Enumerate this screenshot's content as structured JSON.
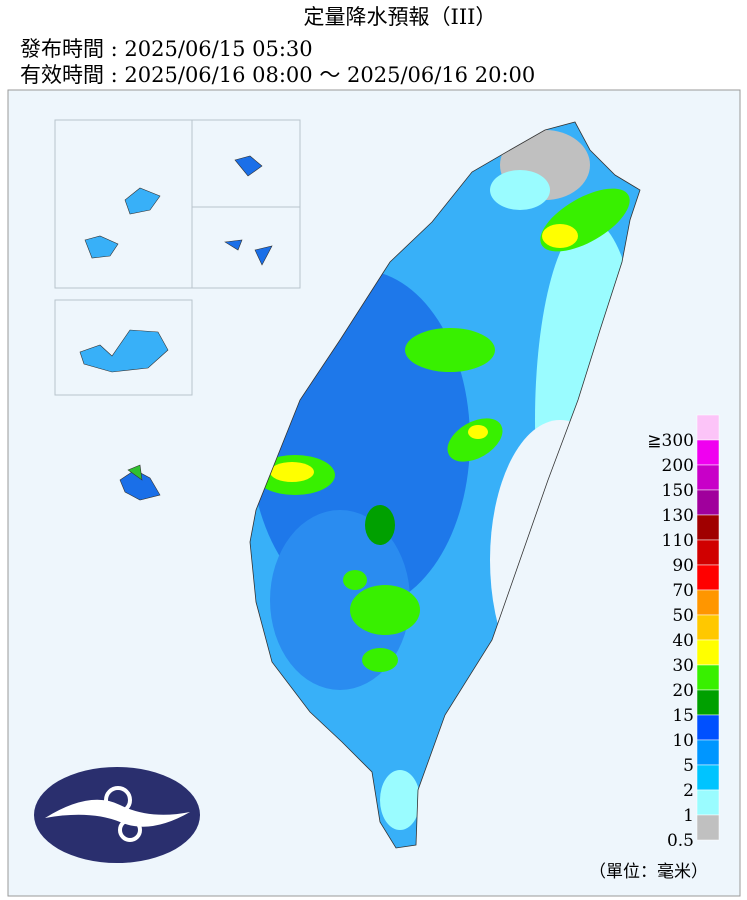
{
  "header": {
    "title": "定量降水預報（III）",
    "issued": "發布時間 : 2025/06/15 05:30",
    "valid": "有效時間 : 2025/06/16 08:00 ～ 2025/06/16 20:00"
  },
  "legend": {
    "items": [
      {
        "label": "≧300",
        "color": "#fcc4f8"
      },
      {
        "label": "200",
        "color": "#f000f0"
      },
      {
        "label": "150",
        "color": "#c800c8"
      },
      {
        "label": "130",
        "color": "#a0009c"
      },
      {
        "label": "110",
        "color": "#a00000"
      },
      {
        "label": "90",
        "color": "#d00000"
      },
      {
        "label": "70",
        "color": "#ff0000"
      },
      {
        "label": "50",
        "color": "#ff9600"
      },
      {
        "label": "40",
        "color": "#ffc800"
      },
      {
        "label": "30",
        "color": "#ffff00"
      },
      {
        "label": "20",
        "color": "#38f000"
      },
      {
        "label": "15",
        "color": "#00a000"
      },
      {
        "label": "10",
        "color": "#0050ff"
      },
      {
        "label": "5",
        "color": "#0096ff"
      },
      {
        "label": "2",
        "color": "#00c4ff"
      },
      {
        "label": "1",
        "color": "#9afcff"
      },
      {
        "label": "0.5",
        "color": "#c0c0c0"
      }
    ],
    "unit": "（單位：毫米）"
  }
}
